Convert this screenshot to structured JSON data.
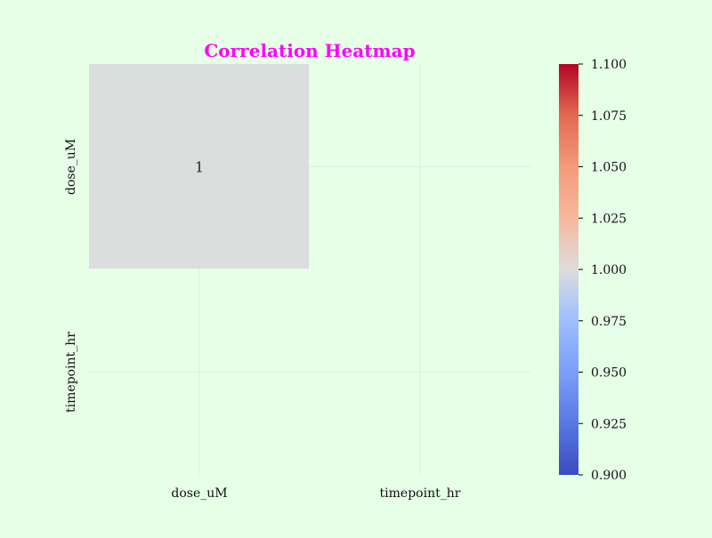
{
  "chart_data": {
    "type": "heatmap",
    "title": "Correlation Heatmap",
    "x_categories": [
      "dose_uM",
      "timepoint_hr"
    ],
    "y_categories": [
      "dose_uM",
      "timepoint_hr"
    ],
    "values": [
      [
        1,
        null
      ],
      [
        null,
        null
      ]
    ],
    "cell_labels": [
      [
        "1",
        ""
      ],
      [
        "",
        ""
      ]
    ],
    "colorbar": {
      "min": 0.9,
      "max": 1.1,
      "ticks": [
        "0.900",
        "0.925",
        "0.950",
        "0.975",
        "1.000",
        "1.025",
        "1.050",
        "1.075",
        "1.100"
      ],
      "colormap": "coolwarm"
    },
    "grid": true
  },
  "colors": {
    "background": "#e6ffe6",
    "title": "#ff00ff",
    "cell_value_1": "#dcdddd",
    "grid": "#d8f5d8",
    "colormap_low": "#3b4cc0",
    "colormap_mid": "#dddcdc",
    "colormap_high": "#b40426"
  }
}
